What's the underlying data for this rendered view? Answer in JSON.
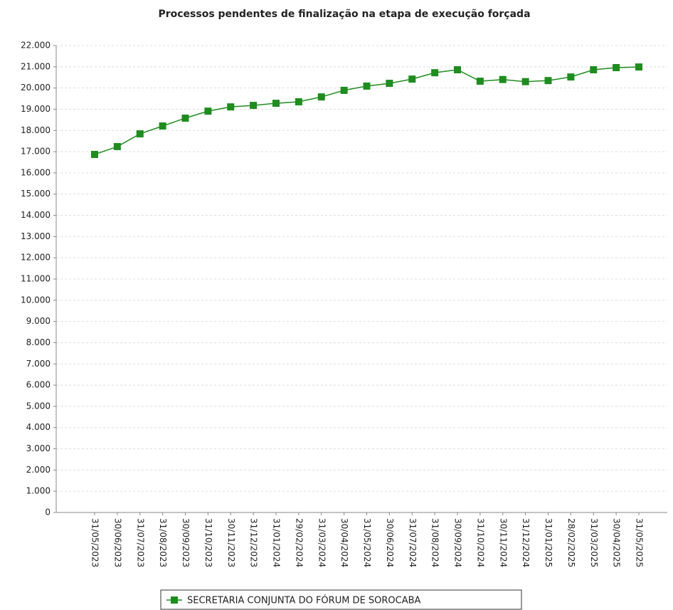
{
  "chart_data": {
    "type": "line",
    "title": "Processos pendentes de finalização na etapa de execução forçada",
    "categories": [
      "31/05/2023",
      "30/06/2023",
      "31/07/2023",
      "31/08/2023",
      "30/09/2023",
      "31/10/2023",
      "30/11/2023",
      "31/12/2023",
      "31/01/2024",
      "29/02/2024",
      "31/03/2024",
      "30/04/2024",
      "31/05/2024",
      "30/06/2024",
      "31/07/2024",
      "31/08/2024",
      "30/09/2024",
      "31/10/2024",
      "30/11/2024",
      "31/12/2024",
      "31/01/2025",
      "28/02/2025",
      "31/03/2025",
      "30/04/2025",
      "31/05/2025"
    ],
    "series": [
      {
        "name": "SECRETARIA CONJUNTA DO FÓRUM DE SOROCABA",
        "color": "#1f8c1f",
        "values": [
          16870,
          17240,
          17840,
          18210,
          18580,
          18910,
          19110,
          19180,
          19280,
          19350,
          19580,
          19890,
          20090,
          20220,
          20420,
          20720,
          20860,
          20320,
          20400,
          20300,
          20350,
          20520,
          20860,
          20960,
          20990
        ]
      }
    ],
    "ylim": [
      0,
      22000
    ],
    "yticks": [
      0,
      {
        "value": 1000,
        "label": "1.000"
      },
      {
        "value": 2000,
        "label": "2.000"
      },
      {
        "value": 3000,
        "label": "3.000"
      },
      {
        "value": 4000,
        "label": "4.000"
      },
      {
        "value": 5000,
        "label": "5.000"
      },
      {
        "value": 6000,
        "label": "6.000"
      },
      {
        "value": 7000,
        "label": "7.000"
      },
      {
        "value": 8000,
        "label": "8.000"
      },
      {
        "value": 9000,
        "label": "9.000"
      },
      {
        "value": 10000,
        "label": "10.000"
      },
      {
        "value": 11000,
        "label": "11.000"
      },
      {
        "value": 12000,
        "label": "12.000"
      },
      {
        "value": 13000,
        "label": "13.000"
      },
      {
        "value": 14000,
        "label": "14.000"
      },
      {
        "value": 15000,
        "label": "15.000"
      },
      {
        "value": 16000,
        "label": "16.000"
      },
      {
        "value": 17000,
        "label": "17.000"
      },
      {
        "value": 18000,
        "label": "18.000"
      },
      {
        "value": 19000,
        "label": "19.000"
      },
      {
        "value": 20000,
        "label": "20.000"
      },
      {
        "value": 21000,
        "label": "21.000"
      },
      {
        "value": 22000,
        "label": "22.000"
      }
    ],
    "grid": true
  }
}
